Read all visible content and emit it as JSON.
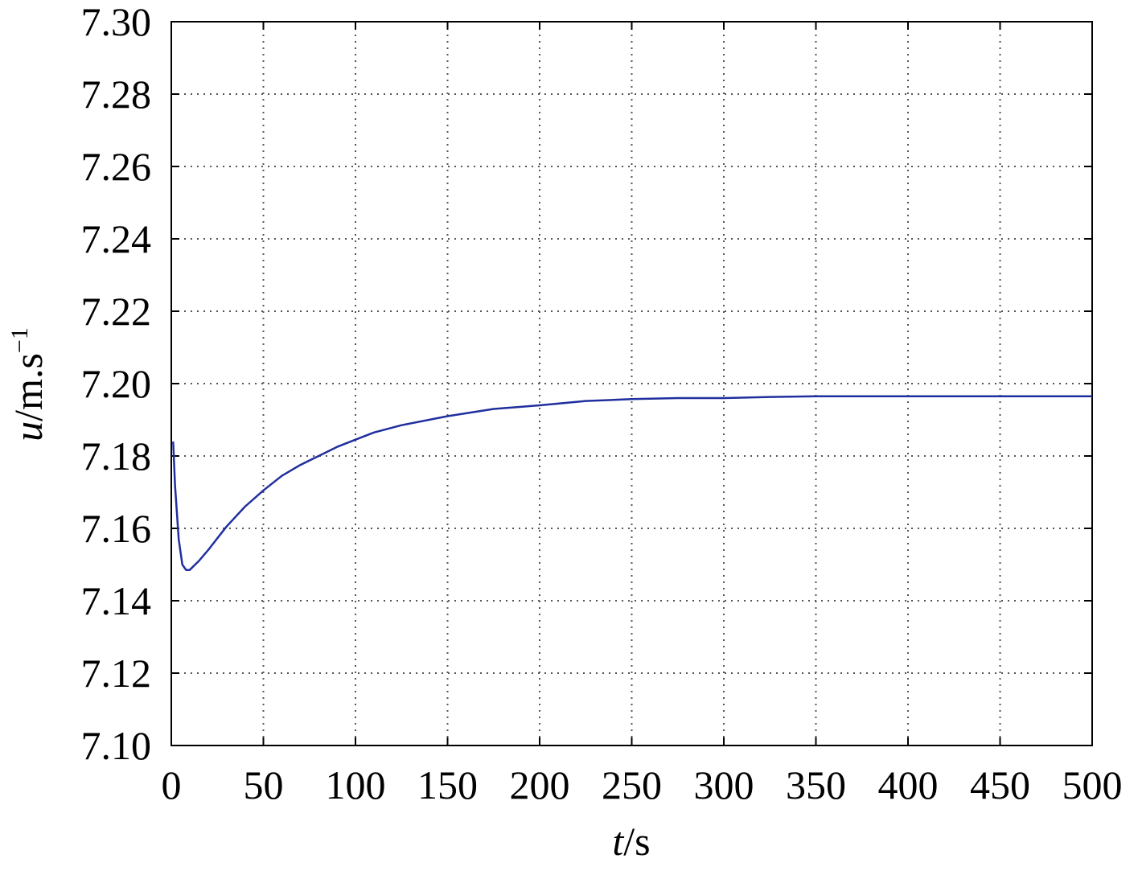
{
  "chart_data": {
    "type": "line",
    "title": "",
    "xlabel": {
      "var": "t",
      "unit": "/s"
    },
    "ylabel": {
      "var": "u",
      "unit": "/m.s",
      "exponent": "−1"
    },
    "xlim": [
      0,
      500
    ],
    "ylim": [
      7.1,
      7.3
    ],
    "xticks": [
      0,
      50,
      100,
      150,
      200,
      250,
      300,
      350,
      400,
      450,
      500
    ],
    "xtick_labels": [
      "0",
      "50",
      "100",
      "150",
      "200",
      "250",
      "300",
      "350",
      "400",
      "450",
      "500"
    ],
    "yticks": [
      7.1,
      7.12,
      7.14,
      7.16,
      7.18,
      7.2,
      7.22,
      7.24,
      7.26,
      7.28,
      7.3
    ],
    "ytick_labels": [
      "7.10",
      "7.12",
      "7.14",
      "7.16",
      "7.18",
      "7.20",
      "7.22",
      "7.24",
      "7.26",
      "7.28",
      "7.30"
    ],
    "grid": true,
    "grid_style": "dotted",
    "legend": "none",
    "colors": {
      "series": "#1f2f9e",
      "grid": "#555555",
      "axes": "#000000"
    },
    "series": [
      {
        "x": [
          1,
          2,
          4,
          6,
          8,
          10,
          15,
          20,
          30,
          40,
          50,
          60,
          70,
          80,
          90,
          100,
          110,
          125,
          150,
          175,
          200,
          225,
          250,
          275,
          300,
          325,
          350,
          400,
          450,
          500
        ],
        "values": [
          7.184,
          7.172,
          7.157,
          7.15,
          7.1485,
          7.1485,
          7.151,
          7.154,
          7.1605,
          7.166,
          7.1705,
          7.1745,
          7.1775,
          7.18,
          7.1825,
          7.1845,
          7.1865,
          7.1885,
          7.191,
          7.193,
          7.194,
          7.1952,
          7.1957,
          7.196,
          7.196,
          7.1963,
          7.1965,
          7.1965,
          7.1965,
          7.1965
        ]
      }
    ]
  }
}
